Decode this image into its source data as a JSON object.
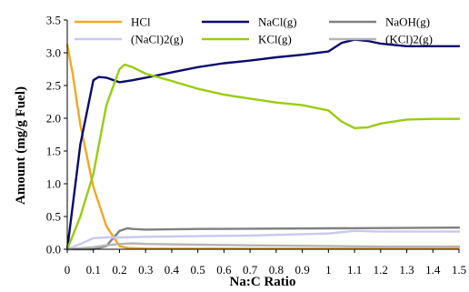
{
  "chart_data": {
    "type": "line",
    "xlabel": "Na:C Ratio",
    "ylabel": "Amount (mg/g Fuel)",
    "xlim": [
      0,
      1.5
    ],
    "ylim": [
      0,
      3.5
    ],
    "x_ticks": [
      "0",
      "0.1",
      "0.2",
      "0.3",
      "0.4",
      "0.5",
      "0.6",
      "0.7",
      "0.8",
      "0.9",
      "1",
      "1.1",
      "1.2",
      "1.3",
      "1.4",
      "1.5"
    ],
    "y_ticks": [
      "0.0",
      "0.5",
      "1.0",
      "1.5",
      "2.0",
      "2.5",
      "3.0",
      "3.5"
    ],
    "grid": false,
    "legend_position": "top",
    "series": [
      {
        "name": "HCl",
        "color": "#f5a623",
        "x": [
          0,
          0.02,
          0.05,
          0.1,
          0.15,
          0.2,
          0.23,
          0.3,
          0.5,
          1.0,
          1.5
        ],
        "y": [
          3.12,
          2.7,
          1.9,
          0.95,
          0.35,
          0.05,
          0.02,
          0.01,
          0.01,
          0.01,
          0.01
        ]
      },
      {
        "name": "NaCl(g)",
        "color": "#0a0a6e",
        "x": [
          0,
          0.05,
          0.1,
          0.12,
          0.15,
          0.2,
          0.25,
          0.3,
          0.4,
          0.5,
          0.6,
          0.7,
          0.8,
          0.9,
          1.0,
          1.05,
          1.1,
          1.15,
          1.2,
          1.3,
          1.4,
          1.5
        ],
        "y": [
          0,
          1.6,
          2.58,
          2.63,
          2.62,
          2.55,
          2.58,
          2.62,
          2.7,
          2.78,
          2.84,
          2.88,
          2.93,
          2.97,
          3.02,
          3.15,
          3.2,
          3.18,
          3.14,
          3.1,
          3.1,
          3.1
        ]
      },
      {
        "name": "NaOH(g)",
        "color": "#808080",
        "x": [
          0,
          0.1,
          0.15,
          0.2,
          0.23,
          0.25,
          0.3,
          0.5,
          1.0,
          1.5
        ],
        "y": [
          0,
          0,
          0.05,
          0.28,
          0.32,
          0.31,
          0.3,
          0.31,
          0.32,
          0.33
        ]
      },
      {
        "name": "(NaCl)2(g)",
        "color": "#c8c8f0",
        "x": [
          0,
          0.05,
          0.1,
          0.15,
          0.2,
          0.3,
          0.5,
          0.7,
          0.9,
          1.0,
          1.1,
          1.2,
          1.3,
          1.4,
          1.5
        ],
        "y": [
          0,
          0.08,
          0.17,
          0.18,
          0.18,
          0.19,
          0.2,
          0.21,
          0.23,
          0.24,
          0.28,
          0.27,
          0.27,
          0.27,
          0.27
        ]
      },
      {
        "name": "KCl(g)",
        "color": "#99cc11",
        "x": [
          0,
          0.05,
          0.1,
          0.15,
          0.2,
          0.22,
          0.25,
          0.3,
          0.4,
          0.5,
          0.6,
          0.7,
          0.8,
          0.9,
          1.0,
          1.05,
          1.1,
          1.15,
          1.2,
          1.3,
          1.4,
          1.5
        ],
        "y": [
          0,
          0.5,
          1.15,
          2.2,
          2.75,
          2.82,
          2.78,
          2.68,
          2.57,
          2.45,
          2.36,
          2.3,
          2.24,
          2.2,
          2.12,
          1.95,
          1.85,
          1.86,
          1.92,
          1.98,
          1.99,
          1.99
        ]
      },
      {
        "name": "(KCl)2(g)",
        "color": "#b4b4b4",
        "x": [
          0,
          0.1,
          0.15,
          0.2,
          0.25,
          0.3,
          0.5,
          0.7,
          1.0,
          1.2,
          1.5
        ],
        "y": [
          0,
          0.03,
          0.06,
          0.08,
          0.09,
          0.08,
          0.07,
          0.06,
          0.05,
          0.04,
          0.04
        ]
      }
    ]
  }
}
